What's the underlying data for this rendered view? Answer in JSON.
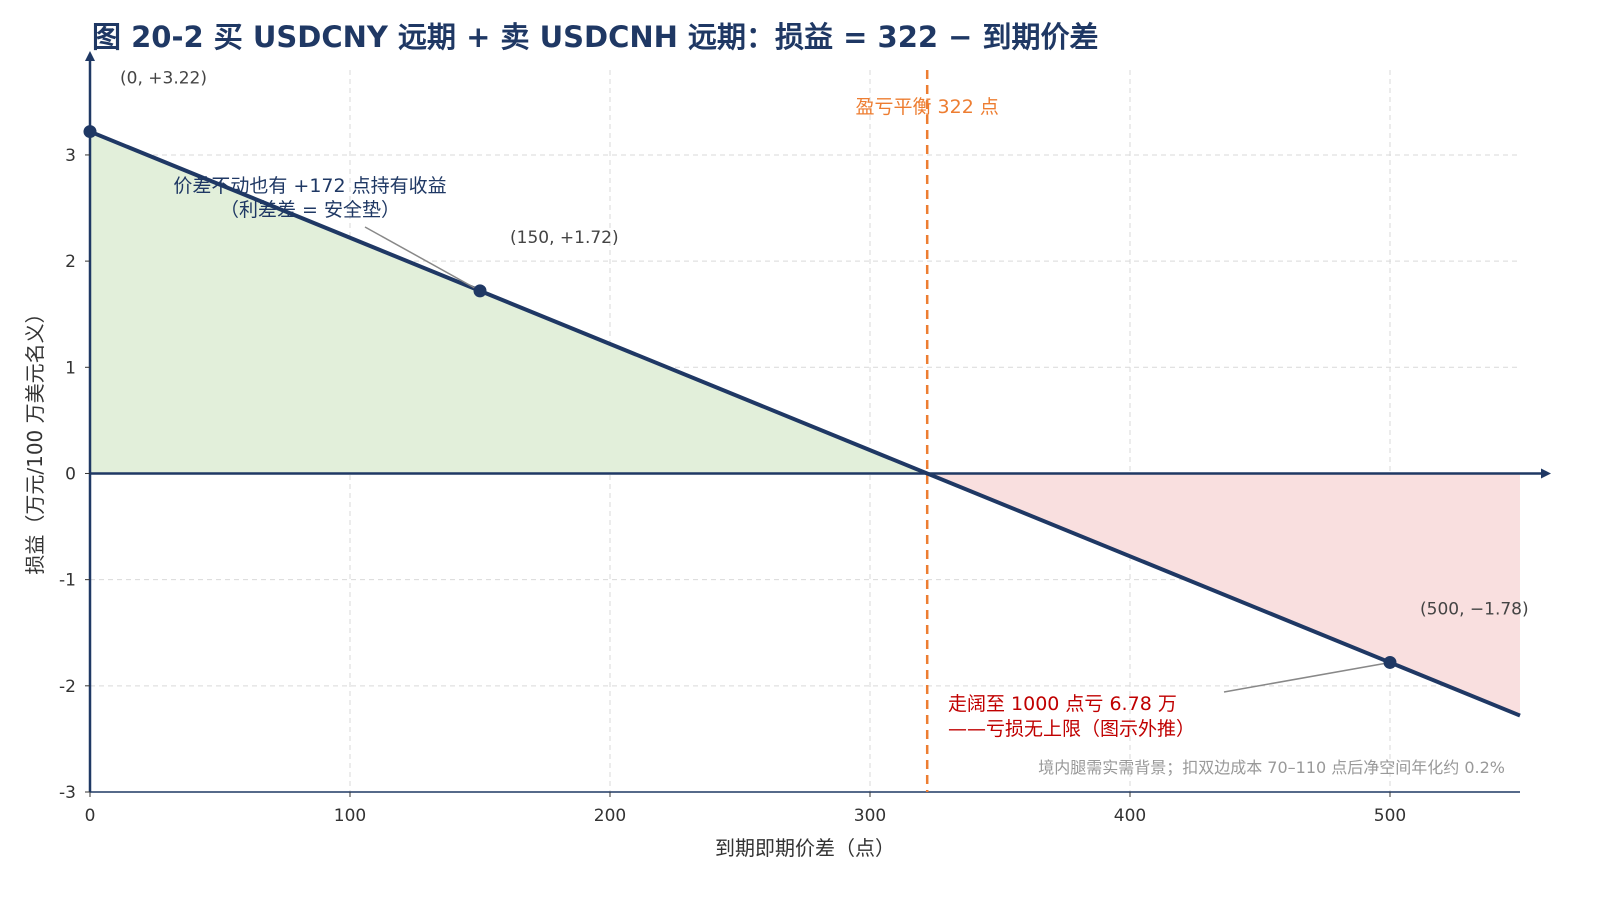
{
  "chart_data": {
    "type": "line",
    "title": "图 20-2 买 USDCNY 远期 + 卖 USDCNH 远期：损益 = 322 − 到期价差",
    "xlabel": "到期即期价差（点）",
    "ylabel": "损益（万元/100 万美元名义）",
    "xlim": [
      0,
      550
    ],
    "ylim": [
      -3,
      3.8
    ],
    "xticks": [
      0,
      100,
      200,
      300,
      400,
      500
    ],
    "yticks": [
      -3,
      -2,
      -1,
      0,
      1,
      2,
      3
    ],
    "grid": true,
    "series": [
      {
        "x": [
          0,
          550
        ],
        "y": [
          3.22,
          -2.28
        ],
        "color": "#1f3864"
      }
    ],
    "fill_profit": {
      "x": [
        0,
        322
      ],
      "color": "#e2efda"
    },
    "fill_loss": {
      "x": [
        322,
        550
      ],
      "color": "#f9dfdf"
    },
    "breakeven": {
      "x": 322,
      "label": "盈亏平衡 322 点",
      "color": "#ed7d31"
    },
    "points": [
      {
        "x": 0,
        "y": 3.22,
        "label": "(0, +3.22)"
      },
      {
        "x": 150,
        "y": 1.72,
        "label": "(150, +1.72)"
      },
      {
        "x": 500,
        "y": -1.78,
        "label": "(500, −1.78)"
      }
    ],
    "annotations": [
      {
        "lines": [
          "价差不动也有 +172 点持有收益",
          "（利差差 = 安全垫）"
        ],
        "color": "#1f3864"
      },
      {
        "lines": [
          "走阔至 1000 点亏 6.78 万",
          "——亏损无上限（图示外推）"
        ],
        "color": "#c00000"
      }
    ],
    "note": "境内腿需实需背景；扣双边成本 70–110 点后净空间年化约 0.2%"
  }
}
